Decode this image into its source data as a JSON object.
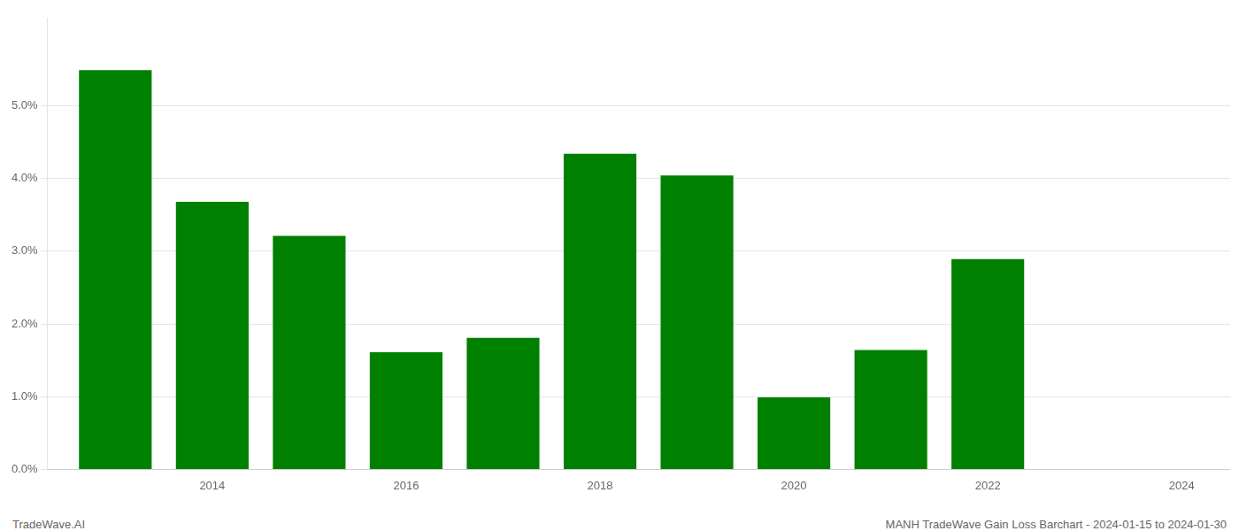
{
  "chart_data": {
    "type": "bar",
    "title": "MANH TradeWave Gain Loss Barchart - 2024-01-15 to 2024-01-30",
    "annotations": [
      "TradeWave.AI"
    ],
    "x": [
      2013,
      2014,
      2015,
      2016,
      2017,
      2018,
      2019,
      2020,
      2021,
      2022,
      2023
    ],
    "values": [
      0.0549,
      0.0368,
      0.0321,
      0.0161,
      0.0181,
      0.0434,
      0.0404,
      0.0099,
      0.0164,
      0.0289,
      0.0
    ],
    "color": "#008000",
    "xlim": [
      2012.3,
      2024.5
    ],
    "xticks": [
      2014,
      2016,
      2018,
      2020,
      2022,
      2024
    ],
    "ylim": [
      0,
      0.062
    ],
    "yticks": [
      {
        "value": 0.0,
        "label": "0.0%"
      },
      {
        "value": 0.01,
        "label": "1.0%"
      },
      {
        "value": 0.02,
        "label": "2.0%"
      },
      {
        "value": 0.03,
        "label": "3.0%"
      },
      {
        "value": 0.04,
        "label": "4.0%"
      },
      {
        "value": 0.05,
        "label": "5.0%"
      }
    ],
    "grid": true
  }
}
